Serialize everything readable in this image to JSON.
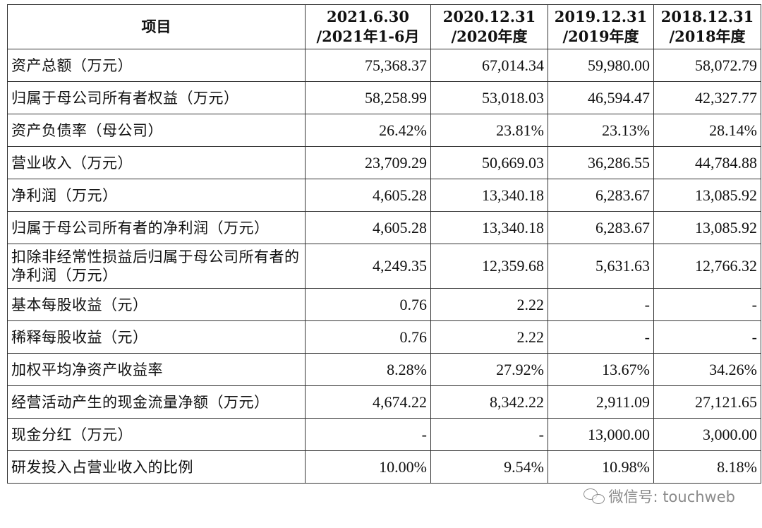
{
  "table": {
    "headers": [
      {
        "line1": "项目",
        "line2": ""
      },
      {
        "line1": "2021.6.30",
        "line2": "/2021年1-6月"
      },
      {
        "line1": "2020.12.31",
        "line2": "/2020年度"
      },
      {
        "line1": "2019.12.31",
        "line2": "/2019年度"
      },
      {
        "line1": "2018.12.31",
        "line2": "/2018年度"
      }
    ],
    "rows": [
      {
        "label": "资产总额（万元）",
        "values": [
          "75,368.37",
          "67,014.34",
          "59,980.00",
          "58,072.79"
        ]
      },
      {
        "label": "归属于母公司所有者权益（万元）",
        "values": [
          "58,258.99",
          "53,018.03",
          "46,594.47",
          "42,327.77"
        ]
      },
      {
        "label": "资产负债率（母公司）",
        "values": [
          "26.42%",
          "23.81%",
          "23.13%",
          "28.14%"
        ]
      },
      {
        "label": "营业收入（万元）",
        "values": [
          "23,709.29",
          "50,669.03",
          "36,286.55",
          "44,784.88"
        ]
      },
      {
        "label": "净利润（万元）",
        "values": [
          "4,605.28",
          "13,340.18",
          "6,283.67",
          "13,085.92"
        ]
      },
      {
        "label": "归属于母公司所有者的净利润（万元）",
        "values": [
          "4,605.28",
          "13,340.18",
          "6,283.67",
          "13,085.92"
        ]
      },
      {
        "label": "扣除非经常性损益后归属于母公司所有者的净利润（万元）",
        "values": [
          "4,249.35",
          "12,359.68",
          "5,631.63",
          "12,766.32"
        ]
      },
      {
        "label": "基本每股收益（元）",
        "values": [
          "0.76",
          "2.22",
          "-",
          "-"
        ]
      },
      {
        "label": "稀释每股收益（元）",
        "values": [
          "0.76",
          "2.22",
          "-",
          "-"
        ]
      },
      {
        "label": "加权平均净资产收益率",
        "values": [
          "8.28%",
          "27.92%",
          "13.67%",
          "34.26%"
        ]
      },
      {
        "label": "经营活动产生的现金流量净额（万元）",
        "values": [
          "4,674.22",
          "8,342.22",
          "2,911.09",
          "27,121.65"
        ]
      },
      {
        "label": "现金分红（万元）",
        "values": [
          "-",
          "-",
          "13,000.00",
          "3,000.00"
        ]
      },
      {
        "label": "研发投入占营业收入的比例",
        "values": [
          "10.00%",
          "9.54%",
          "10.98%",
          "8.18%"
        ]
      }
    ]
  },
  "watermark": {
    "icon": "wechat-icon",
    "text": "微信号: touchweb"
  }
}
